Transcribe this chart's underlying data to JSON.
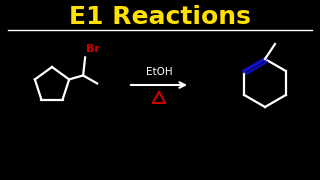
{
  "background_color": "#000000",
  "title": "E1 Reactions",
  "title_color": "#FFE000",
  "title_fontsize": 18,
  "underline_color": "#FFFFFF",
  "line_color": "#FFFFFF",
  "br_color": "#CC0000",
  "delta_color": "#CC0000",
  "double_bond_color": "#1111CC",
  "arrow_color": "#FFFFFF",
  "etoh_color": "#FFFFFF"
}
